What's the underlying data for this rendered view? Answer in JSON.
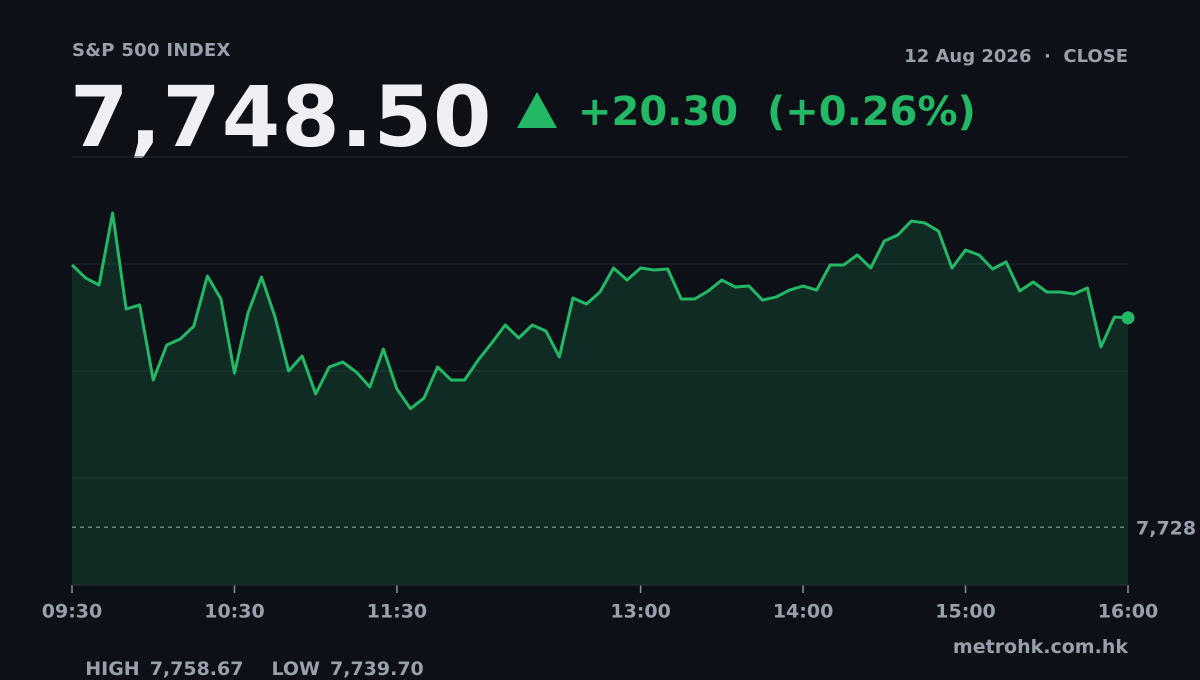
{
  "chart_data": {
    "type": "line",
    "title": "S&P 500 INDEX",
    "date_line": "12 Aug 2026  ·  CLOSE",
    "last": "7,748.50",
    "change": "+20.30",
    "change_pct": "(+0.26%)",
    "stats": [
      {
        "label": "HIGH",
        "value": "7,758.67"
      },
      {
        "label": "LOW",
        "value": "7,739.70"
      }
    ],
    "source": "metrohk.com.hk",
    "x": [
      "09:30",
      "09:35",
      "09:40",
      "09:45",
      "09:50",
      "09:55",
      "10:00",
      "10:05",
      "10:10",
      "10:15",
      "10:20",
      "10:25",
      "10:30",
      "10:35",
      "10:40",
      "10:45",
      "10:50",
      "10:55",
      "11:00",
      "11:05",
      "11:10",
      "11:15",
      "11:20",
      "11:25",
      "11:30",
      "11:35",
      "11:40",
      "11:45",
      "11:50",
      "11:55",
      "12:00",
      "12:05",
      "12:10",
      "12:15",
      "12:20",
      "12:25",
      "12:30",
      "12:35",
      "12:40",
      "12:45",
      "12:50",
      "12:55",
      "13:00",
      "13:05",
      "13:10",
      "13:15",
      "13:20",
      "13:25",
      "13:30",
      "13:35",
      "13:40",
      "13:45",
      "13:50",
      "13:55",
      "14:00",
      "14:05",
      "14:10",
      "14:15",
      "14:20",
      "14:25",
      "14:30",
      "14:35",
      "14:40",
      "14:45",
      "14:50",
      "14:55",
      "15:00",
      "15:05",
      "15:10",
      "15:15",
      "15:20",
      "15:25",
      "15:30",
      "15:35",
      "15:40",
      "15:45",
      "15:50",
      "15:55",
      "16:00"
    ],
    "series": [
      {
        "color": "#22b866",
        "values": [
          7753.63,
          7752.37,
          7751.69,
          7758.67,
          7749.36,
          7749.75,
          7742.48,
          7745.87,
          7746.45,
          7747.71,
          7752.56,
          7750.33,
          7743.15,
          7748.97,
          7752.46,
          7748.58,
          7743.35,
          7744.8,
          7741.12,
          7743.74,
          7744.22,
          7743.25,
          7741.8,
          7745.48,
          7741.6,
          7739.7,
          7740.73,
          7743.74,
          7742.48,
          7742.48,
          7744.41,
          7746.06,
          7747.81,
          7746.55,
          7747.81,
          7747.23,
          7744.71,
          7750.43,
          7749.85,
          7751.01,
          7753.34,
          7752.17,
          7753.34,
          7753.14,
          7753.24,
          7750.33,
          7750.33,
          7751.11,
          7752.17,
          7751.49,
          7751.59,
          7750.23,
          7750.52,
          7751.2,
          7751.59,
          7751.2,
          7753.63,
          7753.63,
          7754.6,
          7753.34,
          7755.95,
          7756.54,
          7757.89,
          7757.7,
          7756.92,
          7753.34,
          7755.08,
          7754.6,
          7753.24,
          7753.92,
          7751.11,
          7751.98,
          7751.01,
          7751.01,
          7750.82,
          7751.4,
          7745.68,
          7748.58,
          7748.5
        ]
      }
    ],
    "xlim": [
      "09:30",
      "16:00"
    ],
    "xticks": [
      "09:30",
      "10:30",
      "11:30",
      "13:00",
      "14:00",
      "15:00",
      "16:00"
    ],
    "ylim": [
      7722.6,
      7764.1
    ],
    "reference_line": {
      "value": 7728.2,
      "label": "7,728"
    },
    "grid": true
  }
}
